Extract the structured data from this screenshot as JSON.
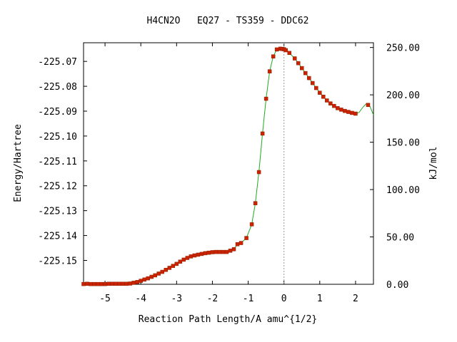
{
  "chart_data": {
    "type": "line",
    "title": "H4CN2O   EQ27 - TS359 - DDC62",
    "xlabel": "Reaction Path Length/A amu^{1/2}",
    "ylabel_left": "Energy/Hartree",
    "ylabel_right": "kJ/mol",
    "xlim": [
      -5.6,
      2.5
    ],
    "ylim_left": [
      -225.1596,
      -225.0625
    ],
    "ylim_right": [
      0,
      255
    ],
    "x_ticks": [
      -5,
      -4,
      -3,
      -2,
      -1,
      0,
      1,
      2
    ],
    "x_tick_labels": [
      "-5",
      "-4",
      "-3",
      "-2",
      "-1",
      "0",
      "1",
      "2"
    ],
    "y_ticks_left": [
      -225.07,
      -225.08,
      -225.09,
      -225.1,
      -225.11,
      -225.12,
      -225.13,
      -225.14,
      -225.15
    ],
    "y_tick_labels_left": [
      "-225.07",
      "-225.08",
      "-225.09",
      "-225.10",
      "-225.11",
      "-225.12",
      "-225.13",
      "-225.14",
      "-225.15"
    ],
    "y_ticks_right": [
      0,
      50,
      100,
      150,
      200,
      250
    ],
    "y_tick_labels_right": [
      "0.00",
      "50.00",
      "100.00",
      "150.00",
      "200.00",
      "250.00"
    ],
    "ts_marker_x": 0,
    "grid": false,
    "colors": {
      "curve": "#22aa22",
      "points": "#cc2200",
      "ts_line": "#999999"
    },
    "series": [
      {
        "x": [
          -5.6,
          -5.5,
          -5.4,
          -5.3,
          -5.2,
          -5.1,
          -5.0,
          -4.9,
          -4.8,
          -4.7,
          -4.6,
          -4.5,
          -4.4,
          -4.3,
          -4.2,
          -4.1,
          -4.0,
          -3.9,
          -3.8,
          -3.7,
          -3.6,
          -3.5,
          -3.4,
          -3.3,
          -3.2,
          -3.1,
          -3.0,
          -2.9,
          -2.8,
          -2.7,
          -2.6,
          -2.5,
          -2.4,
          -2.3,
          -2.2,
          -2.1,
          -2.0,
          -1.9,
          -1.8,
          -1.7,
          -1.6,
          -1.5,
          -1.4,
          -1.3,
          -1.2,
          -1.05,
          -0.9,
          -0.8,
          -0.7,
          -0.6,
          -0.5,
          -0.4,
          -0.3,
          -0.2,
          -0.1,
          -0.05,
          0.0,
          0.05,
          0.15,
          0.3,
          0.4,
          0.5,
          0.6,
          0.7,
          0.8,
          0.9,
          1.0,
          1.1,
          1.2,
          1.3,
          1.4,
          1.5,
          1.6,
          1.7,
          1.8,
          1.9,
          2.0,
          2.1,
          2.2,
          2.3,
          2.4,
          2.5
        ],
        "y": [
          -225.1595,
          -225.1594,
          -225.1595,
          -225.1595,
          -225.1595,
          -225.1595,
          -225.1595,
          -225.1594,
          -225.1594,
          -225.1594,
          -225.1594,
          -225.1594,
          -225.1594,
          -225.1593,
          -225.159,
          -225.1587,
          -225.1582,
          -225.1577,
          -225.1572,
          -225.1566,
          -225.156,
          -225.1553,
          -225.1546,
          -225.1538,
          -225.153,
          -225.1522,
          -225.1514,
          -225.1505,
          -225.1497,
          -225.149,
          -225.1484,
          -225.148,
          -225.1477,
          -225.1474,
          -225.1471,
          -225.1469,
          -225.1467,
          -225.1466,
          -225.1466,
          -225.1466,
          -225.1466,
          -225.1461,
          -225.1455,
          -225.1435,
          -225.143,
          -225.141,
          -225.1355,
          -225.127,
          -225.1145,
          -225.099,
          -225.085,
          -225.074,
          -225.068,
          -225.0652,
          -225.0649,
          -225.065,
          -225.0651,
          -225.0655,
          -225.0666,
          -225.0688,
          -225.0707,
          -225.0727,
          -225.0747,
          -225.0767,
          -225.0787,
          -225.0807,
          -225.0826,
          -225.0842,
          -225.0857,
          -225.0869,
          -225.0879,
          -225.0888,
          -225.0894,
          -225.0899,
          -225.0903,
          -225.0907,
          -225.091,
          -225.0905,
          -225.0885,
          -225.087,
          -225.088,
          -225.0915
        ],
        "markers": [
          -5.6,
          -5.5,
          -5.4,
          -5.3,
          -5.2,
          -5.1,
          -5.0,
          -4.9,
          -4.8,
          -4.7,
          -4.6,
          -4.5,
          -4.4,
          -4.3,
          -4.2,
          -4.1,
          -4.0,
          -3.9,
          -3.8,
          -3.7,
          -3.6,
          -3.5,
          -3.4,
          -3.3,
          -3.2,
          -3.1,
          -3.0,
          -2.9,
          -2.8,
          -2.7,
          -2.6,
          -2.5,
          -2.4,
          -2.3,
          -2.2,
          -2.1,
          -2.0,
          -1.9,
          -1.8,
          -1.7,
          -1.6,
          -1.5,
          -1.4,
          -1.3,
          -1.2,
          -1.05,
          -0.9,
          -0.8,
          -0.7,
          -0.6,
          -0.5,
          -0.4,
          -0.3,
          -0.2,
          -0.1,
          -0.05,
          0.0,
          0.05,
          0.15,
          0.3,
          0.4,
          0.5,
          0.6,
          0.7,
          0.8,
          0.9,
          1.0,
          1.1,
          1.2,
          1.3,
          1.4,
          1.5,
          1.6,
          1.7,
          1.8,
          1.9,
          2.0,
          2.35
        ]
      }
    ]
  }
}
